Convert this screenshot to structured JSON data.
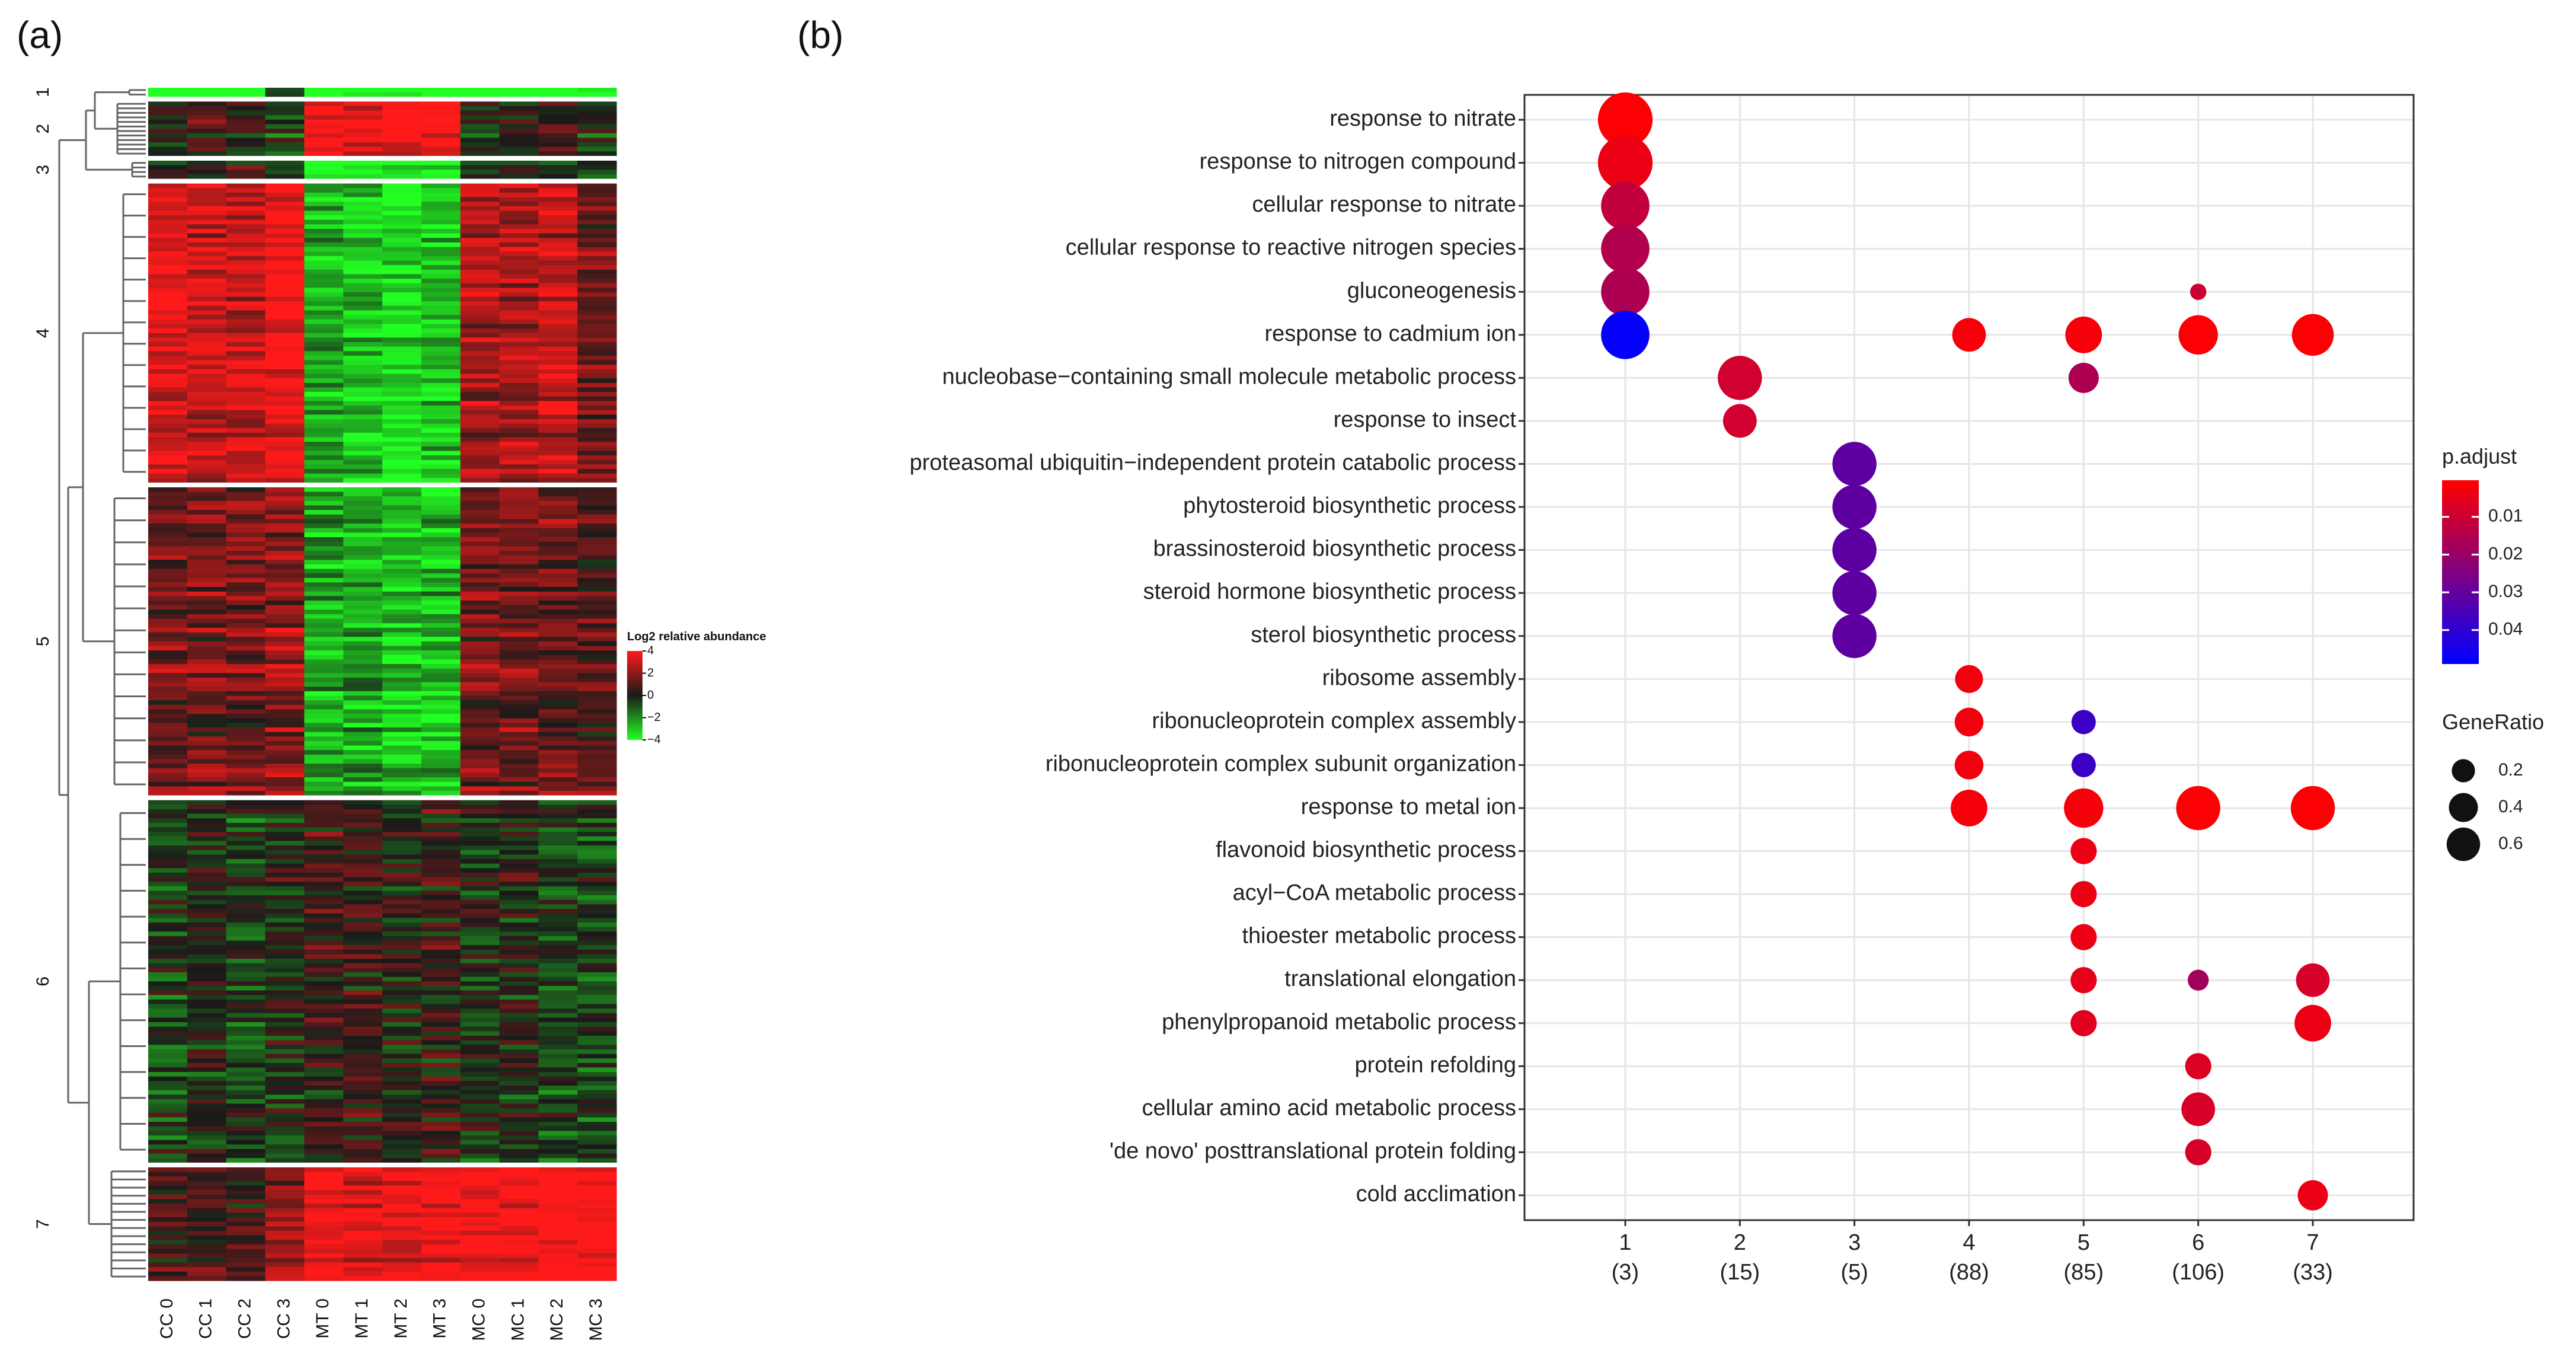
{
  "panels": {
    "a_label": "(a)",
    "b_label": "(b)"
  },
  "heatmap": {
    "columns": [
      "CC 0",
      "CC 1",
      "CC 2",
      "CC 3",
      "MT 0",
      "MT 1",
      "MT 2",
      "MT 3",
      "MC 0",
      "MC 1",
      "MC 2",
      "MC 3"
    ],
    "clusters": [
      "1",
      "2",
      "3",
      "4",
      "5",
      "6",
      "7"
    ],
    "cluster_rows": [
      2,
      12,
      4,
      66,
      68,
      80,
      25
    ],
    "cluster_pattern": [
      [
        -4,
        -4,
        -4,
        -1,
        -4,
        -4,
        -4,
        -4,
        -4,
        -4,
        -4,
        -4
      ],
      [
        0,
        1,
        0,
        -0.5,
        4,
        3.5,
        4,
        4,
        -0.5,
        0,
        0.5,
        -0.5
      ],
      [
        0.5,
        0,
        0.5,
        0,
        -4,
        -3.5,
        -4,
        -4,
        -0.5,
        0,
        -0.5,
        0
      ],
      [
        3.5,
        3,
        3,
        4,
        -2.5,
        -3,
        -3.5,
        -3,
        2.5,
        2.5,
        3,
        1.5
      ],
      [
        1.5,
        1.5,
        1.5,
        2,
        -2.5,
        -2.5,
        -3,
        -3,
        1.5,
        1.5,
        1.5,
        1
      ],
      [
        -0.5,
        0,
        -0.5,
        0,
        0.5,
        0.5,
        0,
        0.5,
        -0.3,
        0,
        -0.5,
        -0.5
      ],
      [
        0.5,
        0.5,
        0.5,
        2,
        4,
        3.5,
        3.5,
        4,
        4,
        4,
        4,
        4
      ]
    ],
    "legend_title": "Log2 relative abundance",
    "legend_ticks": [
      "4",
      "2",
      "0",
      "−2",
      "−4"
    ],
    "legend_values": [
      4,
      2,
      0,
      -2,
      -4
    ],
    "color_high": "#ff1a1a",
    "color_mid": "#1a1a1a",
    "color_low": "#22ff22"
  },
  "chart_data": {
    "type": "scatter",
    "x_categories": [
      "1",
      "2",
      "3",
      "4",
      "5",
      "6",
      "7"
    ],
    "x_counts": [
      "(3)",
      "(15)",
      "(5)",
      "(88)",
      "(85)",
      "(106)",
      "(33)"
    ],
    "y_terms": [
      "response to nitrate",
      "response to nitrogen compound",
      "cellular response to nitrate",
      "cellular response to reactive nitrogen species",
      "gluconeogenesis",
      "response to cadmium ion",
      "nucleobase−containing small molecule metabolic process",
      "response to insect",
      "proteasomal ubiquitin−independent protein catabolic process",
      "phytosteroid biosynthetic process",
      "brassinosteroid biosynthetic process",
      "steroid hormone biosynthetic process",
      "sterol biosynthetic process",
      "ribosome assembly",
      "ribonucleoprotein complex assembly",
      "ribonucleoprotein complex subunit organization",
      "response to metal ion",
      "flavonoid biosynthetic process",
      "acyl−CoA metabolic process",
      "thioester metabolic process",
      "translational elongation",
      "phenylpropanoid metabolic process",
      "protein refolding",
      "cellular amino acid metabolic process",
      "'de novo' posttranslational protein folding",
      "cold acclimation"
    ],
    "points": [
      {
        "term": 0,
        "cluster": 0,
        "ratio": 0.67,
        "padj": 0.0008
      },
      {
        "term": 1,
        "cluster": 0,
        "ratio": 0.67,
        "padj": 0.004
      },
      {
        "term": 2,
        "cluster": 0,
        "ratio": 0.5,
        "padj": 0.012
      },
      {
        "term": 3,
        "cluster": 0,
        "ratio": 0.5,
        "padj": 0.015
      },
      {
        "term": 4,
        "cluster": 0,
        "ratio": 0.5,
        "padj": 0.016
      },
      {
        "term": 4,
        "cluster": 5,
        "ratio": 0.02,
        "padj": 0.01
      },
      {
        "term": 5,
        "cluster": 0,
        "ratio": 0.5,
        "padj": 0.048
      },
      {
        "term": 5,
        "cluster": 3,
        "ratio": 0.2,
        "padj": 0.002
      },
      {
        "term": 5,
        "cluster": 4,
        "ratio": 0.25,
        "padj": 0.002
      },
      {
        "term": 5,
        "cluster": 5,
        "ratio": 0.3,
        "padj": 0.001
      },
      {
        "term": 5,
        "cluster": 6,
        "ratio": 0.35,
        "padj": 0.001
      },
      {
        "term": 6,
        "cluster": 1,
        "ratio": 0.4,
        "padj": 0.009
      },
      {
        "term": 6,
        "cluster": 4,
        "ratio": 0.15,
        "padj": 0.016
      },
      {
        "term": 7,
        "cluster": 1,
        "ratio": 0.2,
        "padj": 0.009
      },
      {
        "term": 8,
        "cluster": 2,
        "ratio": 0.4,
        "padj": 0.031
      },
      {
        "term": 9,
        "cluster": 2,
        "ratio": 0.4,
        "padj": 0.031
      },
      {
        "term": 10,
        "cluster": 2,
        "ratio": 0.4,
        "padj": 0.031
      },
      {
        "term": 11,
        "cluster": 2,
        "ratio": 0.4,
        "padj": 0.031
      },
      {
        "term": 12,
        "cluster": 2,
        "ratio": 0.4,
        "padj": 0.031
      },
      {
        "term": 13,
        "cluster": 3,
        "ratio": 0.12,
        "padj": 0.003
      },
      {
        "term": 14,
        "cluster": 3,
        "ratio": 0.13,
        "padj": 0.003
      },
      {
        "term": 14,
        "cluster": 4,
        "ratio": 0.08,
        "padj": 0.038
      },
      {
        "term": 15,
        "cluster": 3,
        "ratio": 0.13,
        "padj": 0.003
      },
      {
        "term": 15,
        "cluster": 4,
        "ratio": 0.08,
        "padj": 0.038
      },
      {
        "term": 16,
        "cluster": 3,
        "ratio": 0.25,
        "padj": 0.002
      },
      {
        "term": 16,
        "cluster": 4,
        "ratio": 0.3,
        "padj": 0.002
      },
      {
        "term": 16,
        "cluster": 5,
        "ratio": 0.4,
        "padj": 0.001
      },
      {
        "term": 16,
        "cluster": 6,
        "ratio": 0.4,
        "padj": 0.001
      },
      {
        "term": 17,
        "cluster": 4,
        "ratio": 0.1,
        "padj": 0.004
      },
      {
        "term": 18,
        "cluster": 4,
        "ratio": 0.1,
        "padj": 0.004
      },
      {
        "term": 19,
        "cluster": 4,
        "ratio": 0.1,
        "padj": 0.004
      },
      {
        "term": 20,
        "cluster": 4,
        "ratio": 0.1,
        "padj": 0.005
      },
      {
        "term": 20,
        "cluster": 5,
        "ratio": 0.05,
        "padj": 0.018
      },
      {
        "term": 20,
        "cluster": 6,
        "ratio": 0.2,
        "padj": 0.008
      },
      {
        "term": 21,
        "cluster": 4,
        "ratio": 0.1,
        "padj": 0.006
      },
      {
        "term": 21,
        "cluster": 6,
        "ratio": 0.25,
        "padj": 0.004
      },
      {
        "term": 22,
        "cluster": 5,
        "ratio": 0.1,
        "padj": 0.007
      },
      {
        "term": 23,
        "cluster": 5,
        "ratio": 0.2,
        "padj": 0.008
      },
      {
        "term": 24,
        "cluster": 5,
        "ratio": 0.1,
        "padj": 0.008
      },
      {
        "term": 25,
        "cluster": 6,
        "ratio": 0.15,
        "padj": 0.004
      }
    ],
    "color_legend": {
      "title": "p.adjust",
      "ticks": [
        "0.01",
        "0.02",
        "0.03",
        "0.04"
      ],
      "tick_values": [
        0.01,
        0.02,
        0.03,
        0.04
      ],
      "range": [
        0.0003,
        0.049
      ],
      "color_low": "#ff0000",
      "color_high": "#0000ff"
    },
    "size_legend": {
      "title": "GeneRatio",
      "ticks": [
        "0.2",
        "0.4",
        "0.6"
      ],
      "tick_values": [
        0.2,
        0.4,
        0.6
      ]
    }
  }
}
